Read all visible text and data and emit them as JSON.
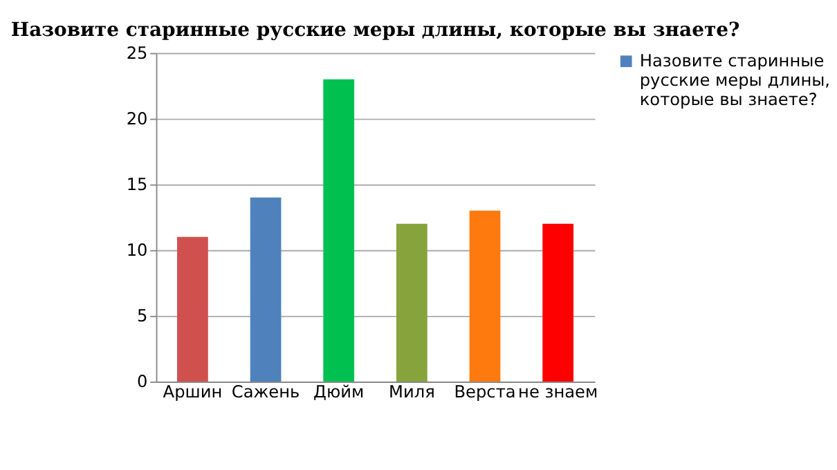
{
  "chart_data": {
    "type": "bar",
    "title": "Назовите старинные русские меры длины,  которые вы знаете?",
    "categories": [
      "Аршин",
      "Сажень",
      "Дюйм",
      "Миля",
      "Верста",
      "не знаем"
    ],
    "series": [
      {
        "name": "Назовите старинные русские меры длины, которые вы знаете?",
        "color": "#4f81bd",
        "colors": [
          "#d0504d",
          "#4f81bd",
          "#00c050",
          "#86a33c",
          "#ff7a0e",
          "#ff0000"
        ],
        "values": [
          11,
          14,
          23,
          12,
          13,
          12
        ]
      }
    ],
    "ylim": [
      0,
      25
    ],
    "yticks": [
      0,
      5,
      10,
      15,
      20,
      25
    ],
    "grid": "y",
    "legend": "right"
  }
}
